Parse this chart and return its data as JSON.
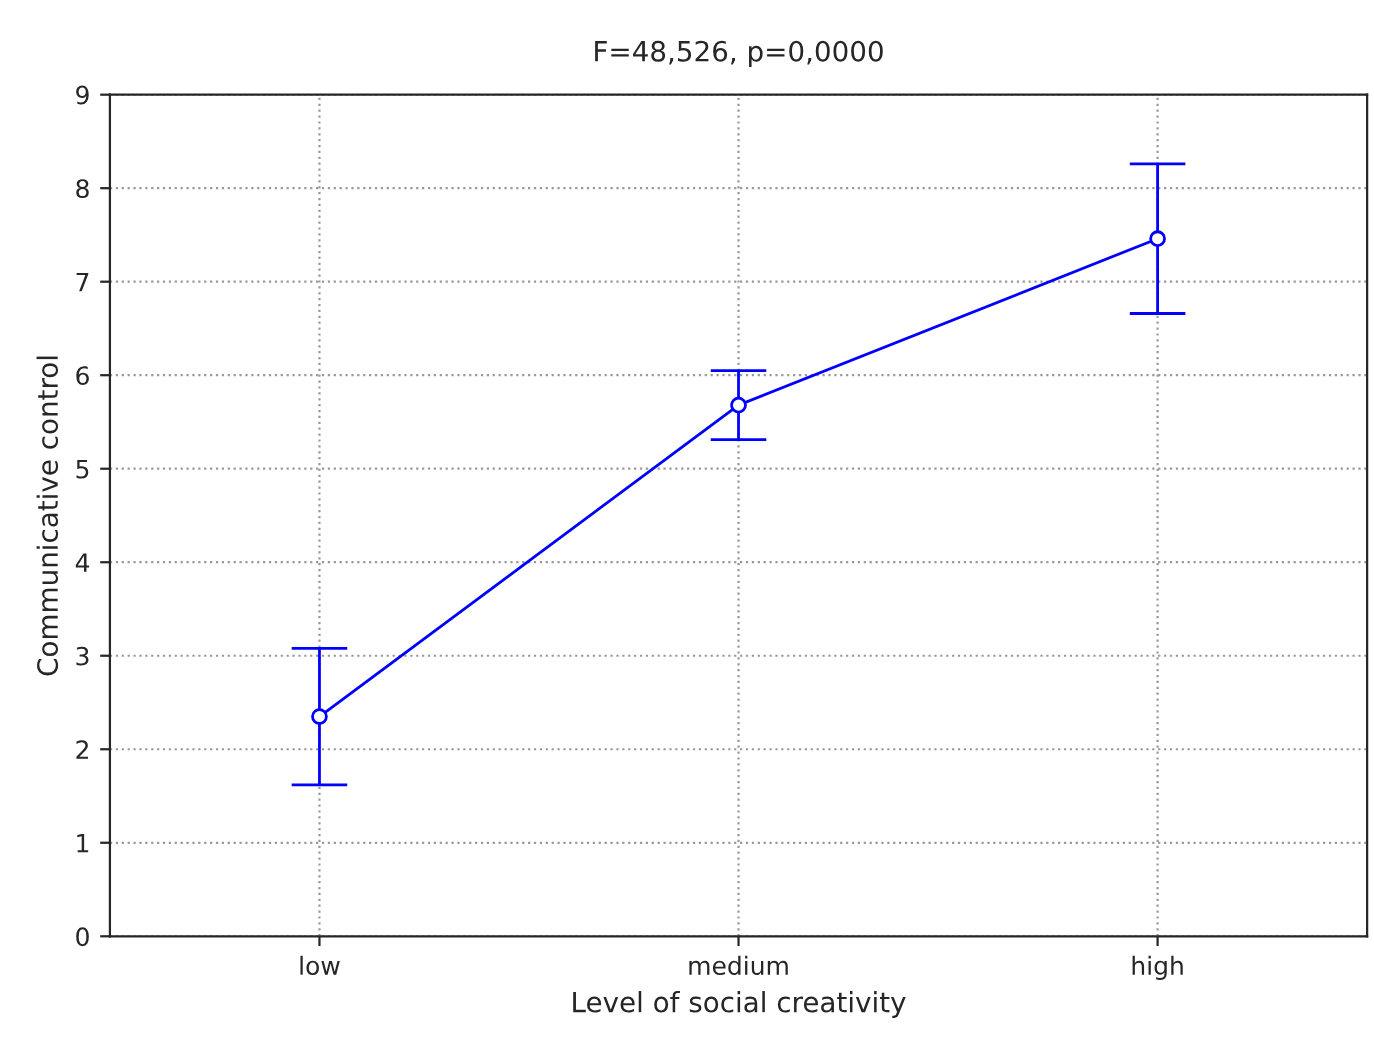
{
  "chart_data": {
    "type": "line",
    "title": "F=48,526, p=0,0000",
    "xlabel": "Level of social creativity",
    "ylabel": "Communicative control",
    "categories": [
      "low",
      "medium",
      "high"
    ],
    "series": [
      {
        "color": "#0000ff",
        "values": [
          2.35,
          5.68,
          7.46
        ],
        "errors": [
          0.73,
          0.37,
          0.8
        ]
      }
    ],
    "ylim": [
      0,
      9
    ],
    "yticks": [
      0,
      1,
      2,
      3,
      4,
      5,
      6,
      7,
      8,
      9
    ],
    "grid": true,
    "marker": "circle",
    "line_style": "solid"
  }
}
